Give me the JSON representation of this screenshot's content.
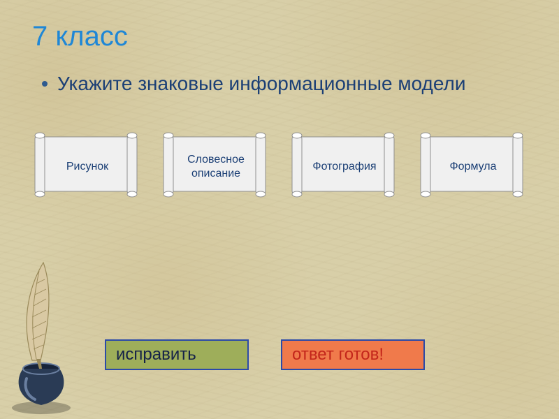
{
  "colors": {
    "title": "#1f87d6",
    "body_text": "#1b3f75",
    "bullet_dot": "#2e5a8f",
    "option_text": "#1b3f75",
    "scroll_fill": "#f0f0f0",
    "scroll_edge": "#8f8f8f",
    "btn_fix_bg": "#9eae5a",
    "btn_fix_border": "#2b4aa8",
    "btn_fix_text": "#152248",
    "btn_ready_bg": "#f07a4b",
    "btn_ready_border": "#2b4aa8",
    "btn_ready_text": "#c3261b"
  },
  "title": "7 класс",
  "question": "Укажите знаковые информационные модели",
  "options": [
    {
      "label": "Рисунок"
    },
    {
      "label": "Словесное описание"
    },
    {
      "label": "Фотография"
    },
    {
      "label": "Формула"
    }
  ],
  "buttons": {
    "fix": "исправить",
    "ready": "ответ готов!"
  },
  "decor": {
    "quill": {
      "feather_fill": "#d9c9a3",
      "feather_edge": "#9a8a5a",
      "ink_body": "#2a3b55",
      "ink_highlight": "#6a7fa0",
      "ink_shadow": "#17243a"
    }
  }
}
